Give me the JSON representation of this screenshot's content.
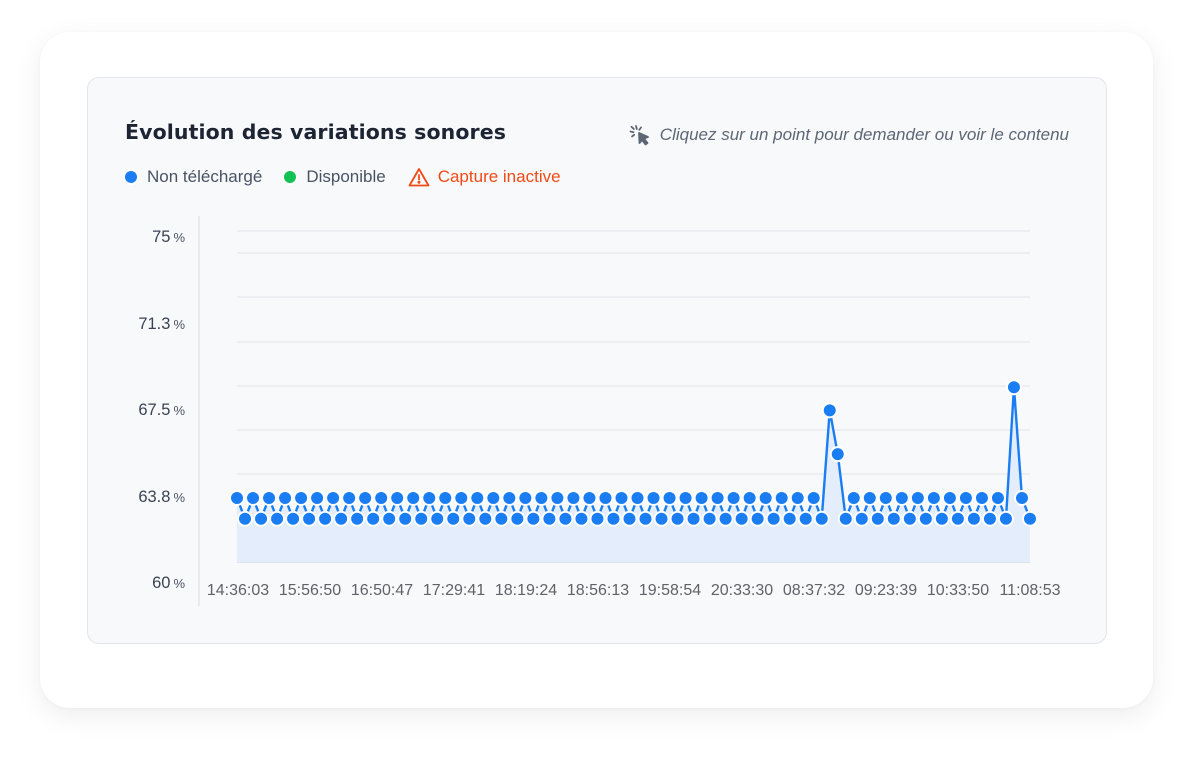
{
  "chart_card": {
    "title": "Évolution des variations sonores",
    "hint": "Cliquez sur un point pour demander ou voir le contenu",
    "hint_icon": "cursor-click-icon",
    "legend": [
      {
        "label": "Non téléchargé",
        "color": "#1a7ef2",
        "icon": "dot"
      },
      {
        "label": "Disponible",
        "color": "#12c152",
        "icon": "dot"
      },
      {
        "label": "Capture inactive",
        "color": "#f04a14",
        "icon": "warning-triangle-icon"
      }
    ]
  },
  "chart_data": {
    "type": "line",
    "title": "Évolution des variations sonores",
    "xlabel": "",
    "ylabel": "%",
    "ylim": [
      60,
      75
    ],
    "yticks": [
      "75",
      "71.3",
      "67.5",
      "63.8",
      "60"
    ],
    "ytick_unit": "%",
    "x_tick_labels": [
      "14:36:03",
      "15:56:50",
      "16:50:47",
      "17:29:41",
      "18:19:24",
      "18:56:13",
      "19:58:54",
      "20:33:30",
      "08:37:32",
      "09:23:39",
      "10:33:50",
      "11:08:53"
    ],
    "grid": true,
    "legend_position": "top-left",
    "area_fill": true,
    "series": [
      {
        "name": "Non téléchargé",
        "color": "#1a7ef2",
        "values": [
          63.8,
          62.9,
          63.8,
          62.9,
          63.8,
          62.9,
          63.8,
          62.9,
          63.8,
          62.9,
          63.8,
          62.9,
          63.8,
          62.9,
          63.8,
          62.9,
          63.8,
          62.9,
          63.8,
          62.9,
          63.8,
          62.9,
          63.8,
          62.9,
          63.8,
          62.9,
          63.8,
          62.9,
          63.8,
          62.9,
          63.8,
          62.9,
          63.8,
          62.9,
          63.8,
          62.9,
          63.8,
          62.9,
          63.8,
          62.9,
          63.8,
          62.9,
          63.8,
          62.9,
          63.8,
          62.9,
          63.8,
          62.9,
          63.8,
          62.9,
          63.8,
          62.9,
          63.8,
          62.9,
          63.8,
          62.9,
          63.8,
          62.9,
          63.8,
          62.9,
          63.8,
          62.9,
          63.8,
          62.9,
          63.8,
          62.9,
          63.8,
          62.9,
          63.8,
          62.9,
          63.8,
          62.9,
          63.8,
          62.9,
          67.6,
          65.7,
          62.9,
          63.8,
          62.9,
          63.8,
          62.9,
          63.8,
          62.9,
          63.8,
          62.9,
          63.8,
          62.9,
          63.8,
          62.9,
          63.8,
          62.9,
          63.8,
          62.9,
          63.8,
          62.9,
          63.8,
          62.9,
          68.6,
          63.8,
          62.9
        ]
      }
    ]
  }
}
